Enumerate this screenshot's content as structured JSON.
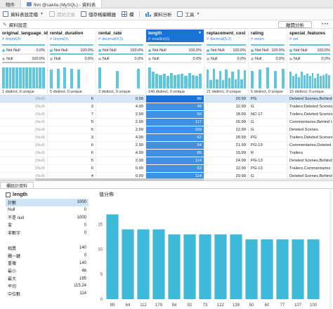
{
  "tabs": [
    {
      "label": "物件"
    },
    {
      "label": "film @sakila (MySQL) - 資料表"
    }
  ],
  "toolbar": {
    "profile_settings": "資料表設定檔",
    "begin_transaction": "開始交易",
    "save_storage_editor": "儲存格編輯器",
    "grid_label": "欄",
    "data_profiling": "資料分析",
    "tools": "工具"
  },
  "subbar": {
    "data_settings": "資料設定",
    "leave_profiling": "離開分析"
  },
  "columns": [
    {
      "name": "original_language_id",
      "type": "tinyint(3)",
      "not_null_pct": "0.0%",
      "null_pct": "100.0%",
      "distinct": "1 distinct, 0 unique",
      "values": [
        "(Null)",
        "(Null)",
        "(Null)",
        "(Null)",
        "(Null)",
        "(Null)",
        "(Null)",
        "(Null)",
        "(Null)",
        "(Null)",
        "(Null)",
        "(Null)"
      ]
    },
    {
      "name": "rental_duration",
      "type": "tinyint(3)",
      "not_null_pct": "100.0%",
      "null_pct": "0.0%",
      "distinct": "5 distinct, 0 unique",
      "values": [
        "6",
        "3",
        "7",
        "5",
        "6",
        "3",
        "6",
        "6",
        "5",
        "6",
        "4",
        "6"
      ]
    },
    {
      "name": "rental_rate",
      "type": "decimal(4,2)",
      "not_null_pct": "100.0%",
      "null_pct": "0.0%",
      "distinct": "3 distinct, 0 unique",
      "values": [
        "0.99",
        "4.99",
        "2.99",
        "2.99",
        "2.99",
        "4.99",
        "2.99",
        "4.99",
        "2.99",
        "0.99",
        "0.99",
        "4.99"
      ]
    },
    {
      "name": "length",
      "type": "smallint(5)",
      "not_null_pct": "100.0%",
      "null_pct": "0.0%",
      "distinct": "140 distinct, 0 unique",
      "values": [
        "86",
        "48",
        "50",
        "117",
        "169",
        "62",
        "54",
        "85",
        "114",
        "63",
        "114",
        "136"
      ]
    },
    {
      "name": "replacement_cost",
      "type": "decimal(5,2)",
      "not_null_pct": "100.0%",
      "null_pct": "0.0%",
      "distinct": "21 distinct, 0 unique",
      "values": [
        "20.99",
        "12.99",
        "18.99",
        "26.99",
        "22.99",
        "28.99",
        "21.99",
        "15.99",
        "24.99",
        "12.99",
        "29.99",
        "22.99"
      ]
    },
    {
      "name": "rating",
      "type": "enum",
      "not_null_pct": "100.0%",
      "null_pct": "0.0%",
      "distinct": "5 distinct, 0 unique",
      "values": [
        "PG",
        "G",
        "NC-17",
        "G",
        "G",
        "PG",
        "PG-13",
        "R",
        "PG-13",
        "PG-13",
        "G",
        "PG"
      ]
    },
    {
      "name": "special_features",
      "type": "set",
      "not_null_pct": "100.0%",
      "null_pct": "0.0%",
      "distinct": "15 distinct, 0 unique",
      "values": [
        "Deleted Scenes,Behind the",
        "Trailers,Deleted Scenes",
        "Trailers,Deleted Scenes",
        "Commentaries,Behind the",
        "Deleted Scenes",
        "Trailers,Deleted Scenes",
        "Commentaries,Deleted Sc",
        "Trailers",
        "Deleted Scenes,Behind the",
        "Trailers,Commentaries",
        "Deleted Scenes,Behind the",
        "Commentaries,Deleted Sce"
      ]
    }
  ],
  "labels": {
    "not_null": "Not Null",
    "null": "Null"
  },
  "stats_panel": {
    "tab": "欄統計資料",
    "column": "length",
    "rows": [
      {
        "label": "計數",
        "value": "1000",
        "highlight": true
      },
      {
        "label": "Null",
        "value": "0"
      },
      {
        "label": "不是 null",
        "value": "1000"
      },
      {
        "label": "零",
        "value": "0"
      },
      {
        "label": "非數字",
        "value": "0"
      },
      {
        "gap": true
      },
      {
        "label": "相異",
        "value": "140"
      },
      {
        "label": "獨一鍵",
        "value": "0"
      },
      {
        "label": "重複",
        "value": "140"
      },
      {
        "label": "最小",
        "value": "46"
      },
      {
        "label": "最大",
        "value": "185"
      },
      {
        "label": "平均",
        "value": "115.24"
      },
      {
        "label": "中位數",
        "value": "114"
      }
    ]
  },
  "chart_data": {
    "type": "bar",
    "title": "值分佈",
    "categories": [
      "85",
      "64",
      "112",
      "179",
      "84",
      "92",
      "73",
      "122",
      "139",
      "50",
      "60",
      "77",
      "107",
      "100"
    ],
    "values": [
      17,
      14,
      14,
      14,
      13,
      13,
      13,
      13,
      13,
      12,
      12,
      12,
      12,
      12
    ],
    "ylim": [
      0,
      20
    ],
    "yticks": [
      "0",
      "5",
      "10",
      "15"
    ],
    "color": "#3fb9d9"
  }
}
